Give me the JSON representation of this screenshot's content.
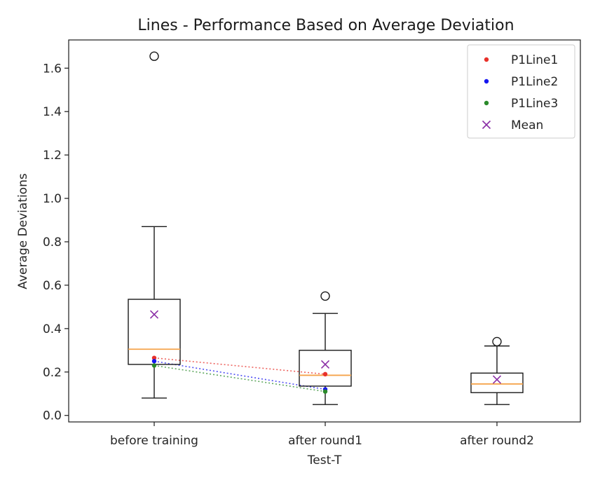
{
  "chart_data": {
    "type": "box",
    "title": "Lines - Performance Based on Average Deviation",
    "xlabel": "Test-T",
    "ylabel": "Average Deviations",
    "ylim": [
      -0.03,
      1.73
    ],
    "yticks": [
      0.0,
      0.2,
      0.4,
      0.6,
      0.8,
      1.0,
      1.2,
      1.4,
      1.6
    ],
    "ytick_labels": [
      "0.0",
      "0.2",
      "0.4",
      "0.6",
      "0.8",
      "1.0",
      "1.2",
      "1.4",
      "1.6"
    ],
    "categories": [
      "before training",
      "after round1",
      "after round2"
    ],
    "boxes": [
      {
        "whisker_low": 0.08,
        "q1": 0.235,
        "median": 0.305,
        "q3": 0.535,
        "whisker_high": 0.87,
        "outliers": [
          1.655
        ]
      },
      {
        "whisker_low": 0.05,
        "q1": 0.135,
        "median": 0.185,
        "q3": 0.3,
        "whisker_high": 0.47,
        "outliers": [
          0.55
        ]
      },
      {
        "whisker_low": 0.05,
        "q1": 0.105,
        "median": 0.145,
        "q3": 0.195,
        "whisker_high": 0.32,
        "outliers": [
          0.34
        ]
      }
    ],
    "means": [
      0.465,
      0.235,
      0.165
    ],
    "series": [
      {
        "name": "P1Line1",
        "color": "#e8312a",
        "values": [
          0.265,
          0.19
        ]
      },
      {
        "name": "P1Line2",
        "color": "#1515f0",
        "values": [
          0.25,
          0.12
        ]
      },
      {
        "name": "P1Line3",
        "color": "#2a8a2a",
        "values": [
          0.23,
          0.11
        ]
      }
    ],
    "mean_label": "Mean",
    "mean_color": "#8a2ea6",
    "median_color": "#f5a34a",
    "legend_position": "top-right",
    "grid": false
  }
}
